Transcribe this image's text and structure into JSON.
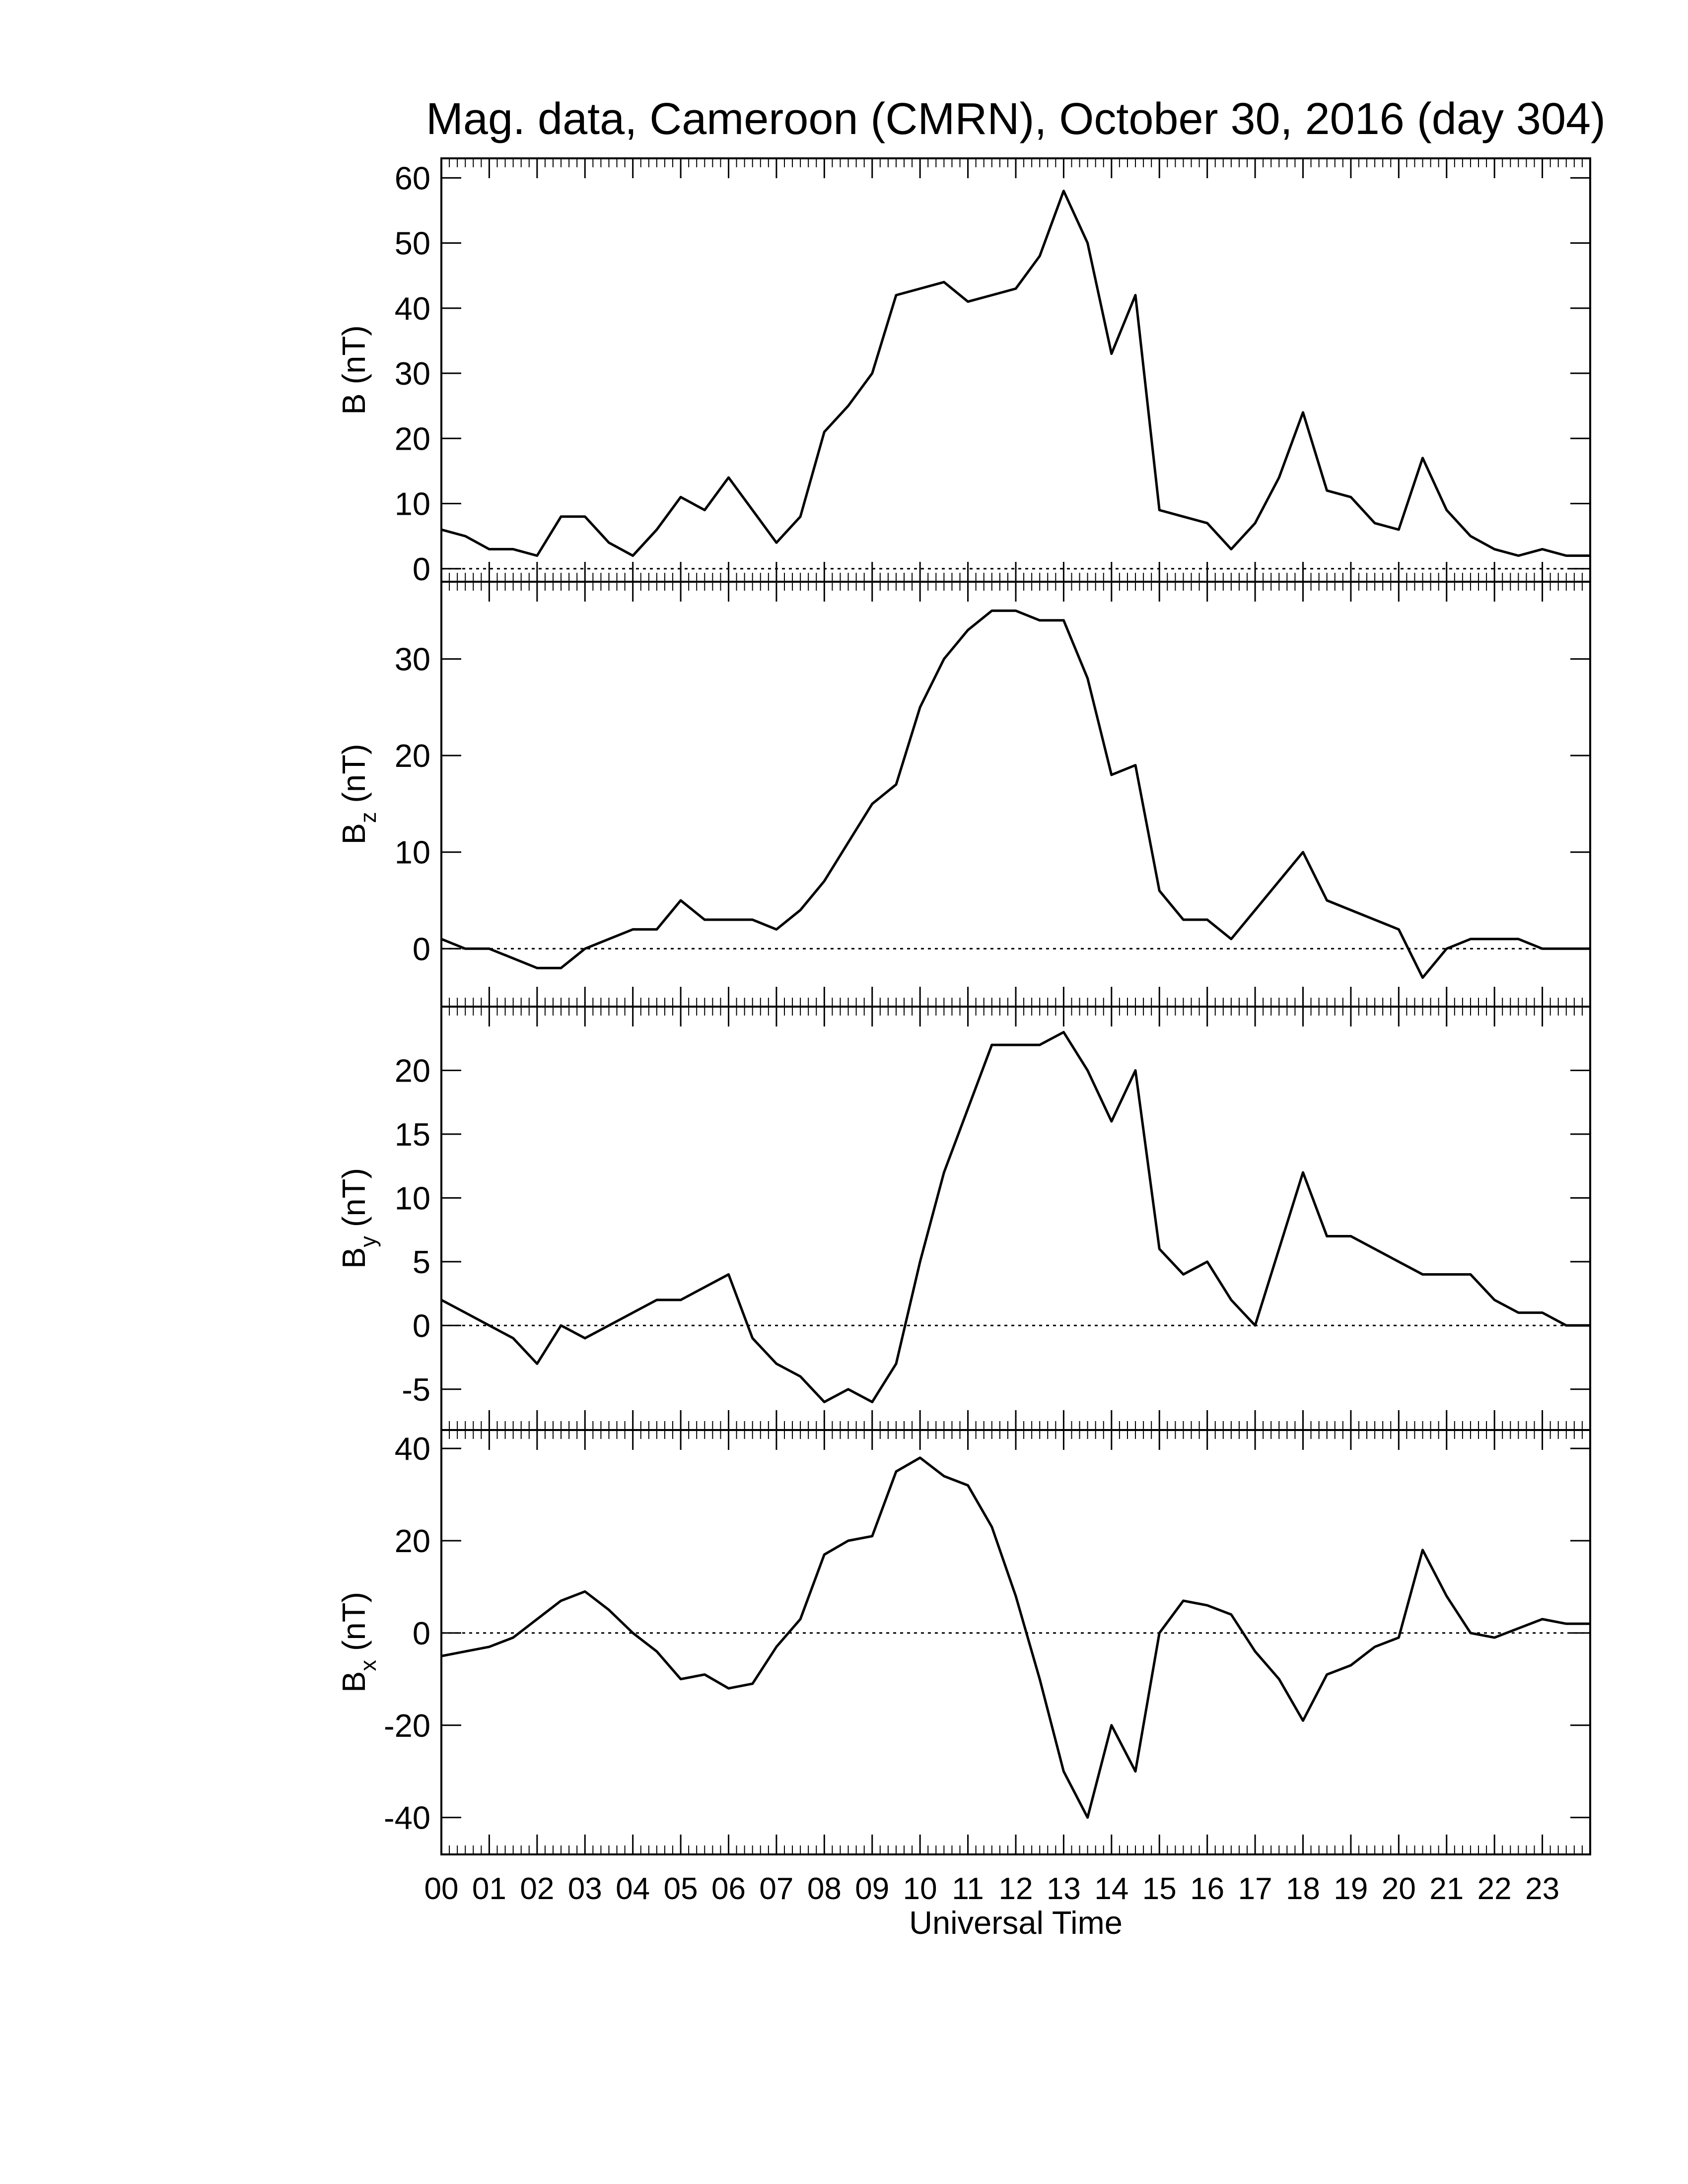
{
  "chart_data": [
    {
      "type": "line",
      "title": "Mag. data, Cameroon (CMRN), October 30, 2016 (day 304)",
      "ylabel": {
        "base": "B",
        "unit": "(nT)"
      },
      "color": "#000000",
      "zero_line": true,
      "xlim": [
        0,
        24
      ],
      "ylim": [
        -2,
        63
      ],
      "yticks": [
        0,
        10,
        20,
        30,
        40,
        50,
        60
      ],
      "x": [
        0,
        0.5,
        1,
        1.5,
        2,
        2.5,
        3,
        3.5,
        4,
        4.5,
        5,
        5.5,
        6,
        6.5,
        7,
        7.5,
        8,
        8.5,
        9,
        9.5,
        10,
        10.5,
        11,
        11.5,
        12,
        12.5,
        13,
        13.5,
        14,
        14.5,
        15,
        15.5,
        16,
        16.5,
        17,
        17.5,
        18,
        18.5,
        19,
        19.5,
        20,
        20.5,
        21,
        21.5,
        22,
        22.5,
        23,
        23.5,
        24
      ],
      "values": [
        6,
        5,
        3,
        3,
        2,
        8,
        8,
        4,
        2,
        6,
        11,
        9,
        14,
        9,
        4,
        8,
        21,
        25,
        30,
        42,
        43,
        44,
        41,
        42,
        43,
        48,
        58,
        50,
        33,
        42,
        9,
        8,
        7,
        3,
        7,
        14,
        24,
        12,
        11,
        7,
        6,
        17,
        9,
        5,
        3,
        2,
        3,
        2,
        2
      ]
    },
    {
      "type": "line",
      "ylabel": {
        "base": "B",
        "sub": "z",
        "unit": "(nT)"
      },
      "color": "#000000",
      "zero_line": true,
      "xlim": [
        0,
        24
      ],
      "ylim": [
        -6,
        38
      ],
      "yticks": [
        0,
        10,
        20,
        30
      ],
      "x": [
        0,
        0.5,
        1,
        1.5,
        2,
        2.5,
        3,
        3.5,
        4,
        4.5,
        5,
        5.5,
        6,
        6.5,
        7,
        7.5,
        8,
        8.5,
        9,
        9.5,
        10,
        10.5,
        11,
        11.5,
        12,
        12.5,
        13,
        13.5,
        14,
        14.5,
        15,
        15.5,
        16,
        16.5,
        17,
        17.5,
        18,
        18.5,
        19,
        19.5,
        20,
        20.5,
        21,
        21.5,
        22,
        22.5,
        23,
        23.5,
        24
      ],
      "values": [
        1,
        0,
        0,
        -1,
        -2,
        -2,
        0,
        1,
        2,
        2,
        5,
        3,
        3,
        3,
        2,
        4,
        7,
        11,
        15,
        17,
        25,
        30,
        33,
        35,
        35,
        34,
        34,
        28,
        18,
        19,
        6,
        3,
        3,
        1,
        4,
        7,
        10,
        5,
        4,
        3,
        2,
        -3,
        0,
        1,
        1,
        1,
        0,
        0,
        0
      ]
    },
    {
      "type": "line",
      "ylabel": {
        "base": "B",
        "sub": "y",
        "unit": "(nT)"
      },
      "color": "#000000",
      "zero_line": true,
      "xlim": [
        0,
        24
      ],
      "ylim": [
        -8.2,
        25
      ],
      "yticks": [
        -5,
        0,
        5,
        10,
        15,
        20
      ],
      "x": [
        0,
        0.5,
        1,
        1.5,
        2,
        2.5,
        3,
        3.5,
        4,
        4.5,
        5,
        5.5,
        6,
        6.5,
        7,
        7.5,
        8,
        8.5,
        9,
        9.5,
        10,
        10.5,
        11,
        11.5,
        12,
        12.5,
        13,
        13.5,
        14,
        14.5,
        15,
        15.5,
        16,
        16.5,
        17,
        17.5,
        18,
        18.5,
        19,
        19.5,
        20,
        20.5,
        21,
        21.5,
        22,
        22.5,
        23,
        23.5,
        24
      ],
      "values": [
        2,
        1,
        0,
        -1,
        -3,
        0,
        -1,
        0,
        1,
        2,
        2,
        3,
        4,
        -1,
        -3,
        -4,
        -6,
        -5,
        -6,
        -3,
        5,
        12,
        17,
        22,
        22,
        22,
        23,
        20,
        16,
        20,
        6,
        4,
        5,
        2,
        0,
        6,
        12,
        7,
        7,
        6,
        5,
        4,
        4,
        4,
        2,
        1,
        1,
        0,
        0
      ]
    },
    {
      "type": "line",
      "ylabel": {
        "base": "B",
        "sub": "x",
        "unit": "(nT)"
      },
      "xlabel": "Universal Time",
      "color": "#000000",
      "zero_line": true,
      "xlim": [
        0,
        24
      ],
      "ylim": [
        -48,
        44
      ],
      "yticks": [
        -40,
        -20,
        0,
        20,
        40
      ],
      "xticks": [
        {
          "value": 0,
          "label": "00"
        },
        {
          "value": 1,
          "label": "01"
        },
        {
          "value": 2,
          "label": "02"
        },
        {
          "value": 3,
          "label": "03"
        },
        {
          "value": 4,
          "label": "04"
        },
        {
          "value": 5,
          "label": "05"
        },
        {
          "value": 6,
          "label": "06"
        },
        {
          "value": 7,
          "label": "07"
        },
        {
          "value": 8,
          "label": "08"
        },
        {
          "value": 9,
          "label": "09"
        },
        10,
        11,
        12,
        13,
        14,
        15,
        16,
        17,
        18,
        19,
        20,
        21,
        22,
        23
      ],
      "x": [
        0,
        0.5,
        1,
        1.5,
        2,
        2.5,
        3,
        3.5,
        4,
        4.5,
        5,
        5.5,
        6,
        6.5,
        7,
        7.5,
        8,
        8.5,
        9,
        9.5,
        10,
        10.5,
        11,
        11.5,
        12,
        12.5,
        13,
        13.5,
        14,
        14.5,
        15,
        15.5,
        16,
        16.5,
        17,
        17.5,
        18,
        18.5,
        19,
        19.5,
        20,
        20.5,
        21,
        21.5,
        22,
        22.5,
        23,
        23.5,
        24
      ],
      "values": [
        -5,
        -4,
        -3,
        -1,
        3,
        7,
        9,
        5,
        0,
        -4,
        -10,
        -9,
        -12,
        -11,
        -3,
        3,
        17,
        20,
        21,
        35,
        38,
        34,
        32,
        23,
        8,
        -10,
        -30,
        -40,
        -20,
        -30,
        0,
        7,
        6,
        4,
        -4,
        -10,
        -19,
        -9,
        -7,
        -3,
        -1,
        18,
        8,
        0,
        -1,
        1,
        3,
        2,
        2
      ]
    }
  ]
}
